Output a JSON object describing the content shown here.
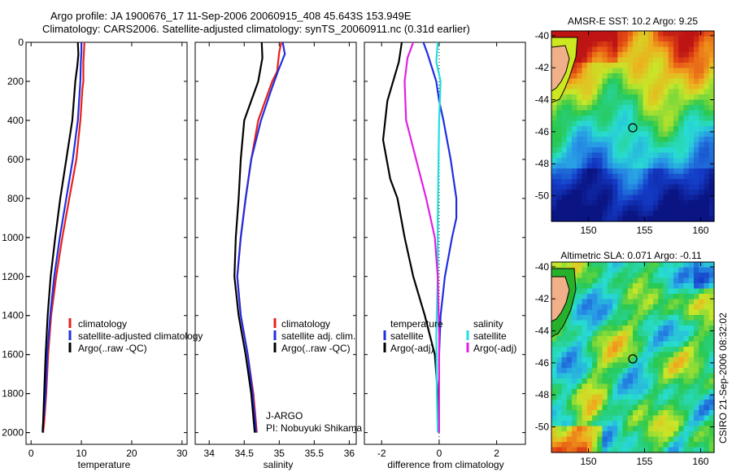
{
  "header": {
    "title_line1": "Argo profile: JA 1900676_17 11-Sep-2006 20060915_408 45.643S 153.949E",
    "title_line2": "Climatology: CARS2006. Satellite-adjusted climatology: synTS_20060911.nc (0.31d earlier)"
  },
  "colors": {
    "clim": "#e8201a",
    "sat": "#1f2ee0",
    "argo": "#000000",
    "sal_sat": "#22dde0",
    "sal_argo": "#e020e0"
  },
  "chart_data": [
    {
      "type": "line",
      "name": "temperature-profile",
      "xlabel": "temperature",
      "xlim": [
        -1,
        31
      ],
      "ylim": [
        2060,
        0
      ],
      "xticks": [
        0,
        10,
        20,
        30
      ],
      "yticks": [
        0,
        200,
        400,
        600,
        800,
        1000,
        1200,
        1400,
        1600,
        1800,
        2000
      ],
      "series": [
        {
          "name": "climatology",
          "color_key": "clim",
          "x": [
            10.6,
            10.5,
            10.4,
            10.4,
            10.2,
            9.8,
            9.0,
            7.6,
            6.2,
            5.0,
            4.0,
            3.4,
            3.0,
            2.6,
            2.4
          ],
          "y": [
            0,
            50,
            100,
            200,
            240,
            400,
            600,
            800,
            1000,
            1200,
            1400,
            1600,
            1800,
            1950,
            2000
          ]
        },
        {
          "name": "satellite-adjusted climatology",
          "color_key": "sat",
          "x": [
            10.0,
            10.0,
            9.9,
            9.8,
            9.3,
            8.3,
            7.0,
            5.7,
            4.6,
            3.8,
            3.2,
            2.9,
            2.6,
            2.3,
            2.4
          ],
          "y": [
            0,
            50,
            100,
            200,
            400,
            600,
            800,
            1000,
            1200,
            1400,
            1600,
            1800,
            1900,
            1980,
            2000
          ]
        },
        {
          "name": "Argo(..raw -QC)",
          "color_key": "argo",
          "x": [
            9.3,
            9.4,
            9.2,
            8.8,
            8.2,
            7.0,
            5.8,
            4.8,
            3.9,
            3.3,
            2.9,
            2.6,
            2.4,
            2.3
          ],
          "y": [
            0,
            60,
            120,
            200,
            400,
            600,
            800,
            1000,
            1200,
            1400,
            1600,
            1800,
            1950,
            2000
          ]
        }
      ],
      "legend": [
        "climatology",
        "satellite-adjusted climatology",
        "Argo(..raw -QC)"
      ]
    },
    {
      "type": "line",
      "name": "salinity-profile",
      "xlabel": "salinity",
      "xlim": [
        33.8,
        36.1
      ],
      "ylim": [
        2060,
        0
      ],
      "xticks": [
        "34",
        "34.5",
        "35",
        "35.5",
        "36"
      ],
      "series": [
        {
          "name": "climatology",
          "color_key": "clim",
          "x": [
            35.03,
            35.0,
            34.97,
            34.9,
            34.8,
            34.7,
            34.6,
            34.52,
            34.45,
            34.4,
            34.45,
            34.55,
            34.63,
            34.68
          ],
          "y": [
            0,
            50,
            150,
            200,
            300,
            400,
            600,
            800,
            1000,
            1200,
            1400,
            1600,
            1800,
            2000
          ]
        },
        {
          "name": "satellite adj. clim.",
          "color_key": "sat",
          "x": [
            35.05,
            35.08,
            34.98,
            34.88,
            34.74,
            34.6,
            34.52,
            34.45,
            34.4,
            34.45,
            34.55,
            34.62,
            34.67
          ],
          "y": [
            0,
            60,
            150,
            250,
            400,
            600,
            800,
            1000,
            1200,
            1400,
            1600,
            1800,
            2000
          ]
        },
        {
          "name": "Argo(..raw -QC)",
          "color_key": "argo",
          "x": [
            34.75,
            34.76,
            34.7,
            34.6,
            34.5,
            34.45,
            34.42,
            34.38,
            34.36,
            34.42,
            34.52,
            34.6,
            34.65
          ],
          "y": [
            0,
            80,
            200,
            300,
            400,
            600,
            800,
            1000,
            1200,
            1400,
            1600,
            1800,
            2000
          ]
        }
      ],
      "legend": [
        "climatology",
        "satellite adj. clim.",
        "Argo(..raw -QC)"
      ]
    },
    {
      "type": "line",
      "name": "difference-profile",
      "xlabel": "difference from climatology",
      "xlim": [
        -2.6,
        3.0
      ],
      "ylim": [
        2060,
        0
      ],
      "xticks": [
        -2,
        0,
        2
      ],
      "series": [
        {
          "name": "temperature satellite",
          "color_key": "sat",
          "x": [
            -0.55,
            -0.4,
            -0.1,
            0.0,
            0.15,
            0.4,
            0.6,
            0.6,
            0.45,
            0.2,
            0.05,
            0.0,
            0.0
          ],
          "y": [
            0,
            60,
            200,
            300,
            400,
            600,
            800,
            900,
            1000,
            1200,
            1400,
            1600,
            2000
          ]
        },
        {
          "name": "temperature Argo(-adj)",
          "color_key": "argo",
          "x": [
            -1.3,
            -1.4,
            -1.8,
            -1.95,
            -1.7,
            -1.45,
            -1.2,
            -0.9,
            -0.5,
            -0.15,
            -0.05,
            0.0
          ],
          "y": [
            0,
            100,
            300,
            500,
            700,
            800,
            1000,
            1200,
            1400,
            1600,
            1800,
            2000
          ]
        },
        {
          "name": "salinity satellite",
          "color_key": "sal_sat",
          "x": [
            -0.05,
            -0.1,
            0.05,
            0.0,
            -0.02,
            -0.05,
            -0.05,
            -0.1,
            -0.08,
            -0.05
          ],
          "y": [
            0,
            100,
            200,
            400,
            600,
            900,
            1200,
            1500,
            1800,
            2000
          ]
        },
        {
          "name": "salinity Argo(-adj)",
          "color_key": "sal_argo",
          "x": [
            -0.9,
            -1.1,
            -1.2,
            -1.15,
            -0.8,
            -0.45,
            -0.15,
            -0.05,
            0.0,
            0.0
          ],
          "y": [
            0,
            80,
            200,
            400,
            600,
            800,
            1000,
            1200,
            1500,
            2000
          ]
        }
      ],
      "legend_temperature": {
        "heading": "temperature",
        "items": [
          "satellite",
          "Argo(-adj)"
        ]
      },
      "legend_salinity": {
        "heading": "salinity",
        "items": [
          "satellite",
          "Argo(-adj)"
        ]
      }
    },
    {
      "type": "heatmap",
      "name": "sst-map",
      "title": "AMSR-E SST: 10.2 Argo: 9.25",
      "xticks": [
        "150",
        "155",
        "160"
      ],
      "yticks": [
        "-40",
        "-42",
        "-44",
        "-46",
        "-48",
        "-50"
      ],
      "float_position": {
        "lon": 153.949,
        "lat": -45.643
      }
    },
    {
      "type": "heatmap",
      "name": "sla-map",
      "title": "Altimetric SLA: 0.071 Argo: -0.11",
      "xticks": [
        "150",
        "155",
        "160"
      ],
      "yticks": [
        "-40",
        "-42",
        "-44",
        "-46",
        "-48",
        "-50"
      ],
      "float_position": {
        "lon": 153.949,
        "lat": -45.643
      }
    }
  ],
  "annotations": {
    "project": "J-ARGO",
    "pi": "PI: Nobuyuki Shikama",
    "credit": "CSIRO 21-Sep-2006 08:32:02"
  }
}
